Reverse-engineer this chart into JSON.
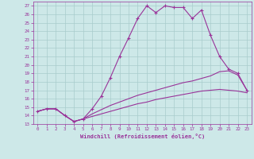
{
  "xlabel": "Windchill (Refroidissement éolien,°C)",
  "background_color": "#cde8e8",
  "grid_color": "#a8cccc",
  "line_color": "#993399",
  "xlim": [
    -0.5,
    23.5
  ],
  "ylim": [
    13,
    27.5
  ],
  "yticks": [
    13,
    14,
    15,
    16,
    17,
    18,
    19,
    20,
    21,
    22,
    23,
    24,
    25,
    26,
    27
  ],
  "xticks": [
    0,
    1,
    2,
    3,
    4,
    5,
    6,
    7,
    8,
    9,
    10,
    11,
    12,
    13,
    14,
    15,
    16,
    17,
    18,
    19,
    20,
    21,
    22,
    23
  ],
  "series": [
    {
      "x": [
        0,
        1,
        2,
        3,
        4,
        5,
        6,
        7,
        8,
        9,
        10,
        11,
        12,
        13,
        14,
        15,
        16,
        17,
        18,
        19,
        20,
        21,
        22,
        23
      ],
      "y": [
        14.5,
        14.8,
        14.8,
        14.0,
        13.3,
        13.6,
        14.8,
        16.3,
        18.5,
        21.0,
        23.2,
        25.5,
        27.0,
        26.2,
        27.0,
        26.8,
        26.8,
        25.5,
        26.5,
        23.5,
        21.0,
        19.5,
        19.0,
        17.0
      ],
      "marker": true
    },
    {
      "x": [
        0,
        1,
        2,
        3,
        4,
        5,
        6,
        7,
        8,
        9,
        10,
        11,
        12,
        13,
        14,
        15,
        16,
        17,
        18,
        19,
        20,
        21,
        22,
        23
      ],
      "y": [
        14.5,
        14.8,
        14.8,
        14.0,
        13.3,
        13.6,
        14.2,
        14.7,
        15.2,
        15.6,
        16.0,
        16.4,
        16.7,
        17.0,
        17.3,
        17.6,
        17.9,
        18.1,
        18.4,
        18.7,
        19.2,
        19.3,
        18.8,
        17.0
      ],
      "marker": false
    },
    {
      "x": [
        0,
        1,
        2,
        3,
        4,
        5,
        6,
        7,
        8,
        9,
        10,
        11,
        12,
        13,
        14,
        15,
        16,
        17,
        18,
        19,
        20,
        21,
        22,
        23
      ],
      "y": [
        14.5,
        14.8,
        14.8,
        14.0,
        13.3,
        13.6,
        13.9,
        14.2,
        14.5,
        14.8,
        15.1,
        15.4,
        15.6,
        15.9,
        16.1,
        16.3,
        16.5,
        16.7,
        16.9,
        17.0,
        17.1,
        17.0,
        16.9,
        16.7
      ],
      "marker": false
    }
  ]
}
